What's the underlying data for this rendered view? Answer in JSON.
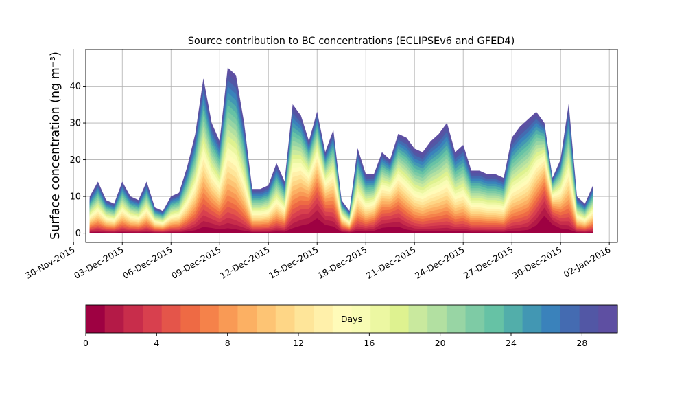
{
  "chart_data": {
    "type": "area",
    "title": "Source contribution to BC concentrations (ECLIPSEv6 and GFED4)",
    "ylabel": "Surface concentration (ng m⁻³)",
    "xlabel": "",
    "grid": true,
    "x_range": [
      "2015-11-30T18:00",
      "2016-01-02T12:00"
    ],
    "ylim": [
      -2.5,
      50
    ],
    "x_ticks": [
      "30-Nov-2015",
      "03-Dec-2015",
      "06-Dec-2015",
      "09-Dec-2015",
      "12-Dec-2015",
      "15-Dec-2015",
      "18-Dec-2015",
      "21-Dec-2015",
      "24-Dec-2015",
      "27-Dec-2015",
      "30-Dec-2015",
      "02-Jan-2016"
    ],
    "y_ticks": [
      0,
      10,
      20,
      30,
      40
    ],
    "x": [
      "2015-12-01T00:00",
      "2015-12-01T12:00",
      "2015-12-02T00:00",
      "2015-12-02T12:00",
      "2015-12-03T00:00",
      "2015-12-03T12:00",
      "2015-12-04T00:00",
      "2015-12-04T12:00",
      "2015-12-05T00:00",
      "2015-12-05T12:00",
      "2015-12-06T00:00",
      "2015-12-06T12:00",
      "2015-12-07T00:00",
      "2015-12-07T12:00",
      "2015-12-08T00:00",
      "2015-12-08T12:00",
      "2015-12-09T00:00",
      "2015-12-09T12:00",
      "2015-12-10T00:00",
      "2015-12-10T12:00",
      "2015-12-11T00:00",
      "2015-12-11T12:00",
      "2015-12-12T00:00",
      "2015-12-12T12:00",
      "2015-12-13T00:00",
      "2015-12-13T12:00",
      "2015-12-14T00:00",
      "2015-12-14T12:00",
      "2015-12-15T00:00",
      "2015-12-15T12:00",
      "2015-12-16T00:00",
      "2015-12-16T12:00",
      "2015-12-17T00:00",
      "2015-12-17T12:00",
      "2015-12-18T00:00",
      "2015-12-18T12:00",
      "2015-12-19T00:00",
      "2015-12-19T12:00",
      "2015-12-20T00:00",
      "2015-12-20T12:00",
      "2015-12-21T00:00",
      "2015-12-21T12:00",
      "2015-12-22T00:00",
      "2015-12-22T12:00",
      "2015-12-23T00:00",
      "2015-12-23T12:00",
      "2015-12-24T00:00",
      "2015-12-24T12:00",
      "2015-12-25T00:00",
      "2015-12-25T12:00",
      "2015-12-26T00:00",
      "2015-12-26T12:00",
      "2015-12-27T00:00",
      "2015-12-27T12:00",
      "2015-12-28T00:00",
      "2015-12-28T12:00",
      "2015-12-29T00:00",
      "2015-12-29T12:00",
      "2015-12-30T00:00",
      "2015-12-30T12:00",
      "2015-12-31T00:00",
      "2015-12-31T12:00",
      "2016-01-01T00:00"
    ],
    "total": [
      10,
      14,
      9,
      8,
      14,
      10,
      9,
      14,
      7,
      6,
      10,
      11,
      18,
      27,
      42,
      30,
      25,
      45,
      43,
      30,
      12,
      12,
      13,
      19,
      14,
      35,
      32,
      25,
      33,
      22,
      28,
      9,
      6,
      23,
      16,
      16,
      22,
      20,
      27,
      26,
      23,
      22,
      25,
      27,
      30,
      22,
      24,
      17,
      17,
      16,
      16,
      15,
      26,
      29,
      31,
      33,
      30,
      15,
      20,
      35,
      10,
      8,
      13
    ],
    "colorbar": {
      "label": "Days",
      "ticks": [
        0,
        4,
        8,
        12,
        16,
        20,
        24,
        28
      ],
      "range": [
        0,
        30
      ],
      "colors": [
        "#9e0142",
        "#b41a47",
        "#c82d4b",
        "#d8404e",
        "#e4554a",
        "#ee6a44",
        "#f5824a",
        "#f99a55",
        "#fcb063",
        "#fdc474",
        "#fed686",
        "#fee599",
        "#fff0aa",
        "#fffbb9",
        "#f8fcb4",
        "#ecf7a2",
        "#def290",
        "#c9e99e",
        "#b2e0a1",
        "#98d5a4",
        "#7ecba5",
        "#66c2a5",
        "#52aeaa",
        "#4297b3",
        "#3a82bb",
        "#446bb1",
        "#5257a5",
        "#5e4fa2"
      ]
    }
  }
}
